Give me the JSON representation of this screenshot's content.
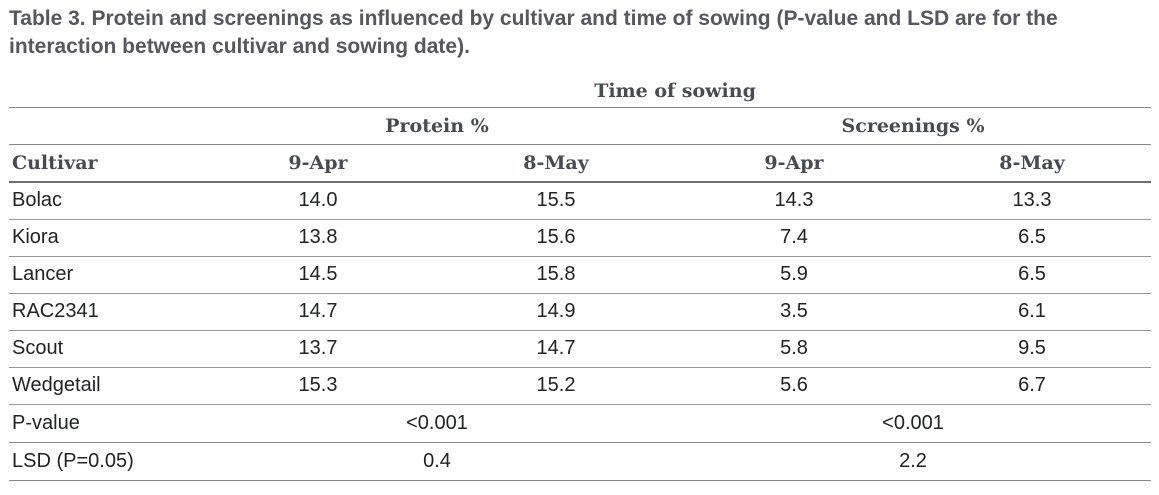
{
  "caption": "Table 3. Protein and screenings as influenced by cultivar and time of sowing (P-value and LSD are for the interaction between cultivar and sowing date).",
  "table": {
    "spanner_header": "Time of sowing",
    "group_headers": {
      "protein": "Protein %",
      "screenings": "Screenings %"
    },
    "column_headers": {
      "cultivar": "Cultivar",
      "protein_9apr": "9-Apr",
      "protein_8may": "8-May",
      "screenings_9apr": "9-Apr",
      "screenings_8may": "8-May"
    },
    "rows": [
      {
        "cultivar": "Bolac",
        "protein_9apr": "14.0",
        "protein_8may": "15.5",
        "screenings_9apr": "14.3",
        "screenings_8may": "13.3"
      },
      {
        "cultivar": "Kiora",
        "protein_9apr": "13.8",
        "protein_8may": "15.6",
        "screenings_9apr": "7.4",
        "screenings_8may": "6.5"
      },
      {
        "cultivar": "Lancer",
        "protein_9apr": "14.5",
        "protein_8may": "15.8",
        "screenings_9apr": "5.9",
        "screenings_8may": "6.5"
      },
      {
        "cultivar": "RAC2341",
        "protein_9apr": "14.7",
        "protein_8may": "14.9",
        "screenings_9apr": "3.5",
        "screenings_8may": "6.1"
      },
      {
        "cultivar": "Scout",
        "protein_9apr": "13.7",
        "protein_8may": "14.7",
        "screenings_9apr": "5.8",
        "screenings_8may": "9.5"
      },
      {
        "cultivar": "Wedgetail",
        "protein_9apr": "15.3",
        "protein_8may": "15.2",
        "screenings_9apr": "5.6",
        "screenings_8may": "6.7"
      }
    ],
    "stats_rows": [
      {
        "label": "P-value",
        "protein": "<0.001",
        "screenings": "<0.001"
      },
      {
        "label": "LSD (P=0.05)",
        "protein": "0.4",
        "screenings": "2.2"
      }
    ]
  },
  "colors": {
    "caption_text": "#56585d",
    "header_text": "#474c52",
    "body_text": "#212327",
    "rule": "#8a8a8a",
    "rule_dark": "#6e6e6e",
    "background": "#ffffff"
  }
}
